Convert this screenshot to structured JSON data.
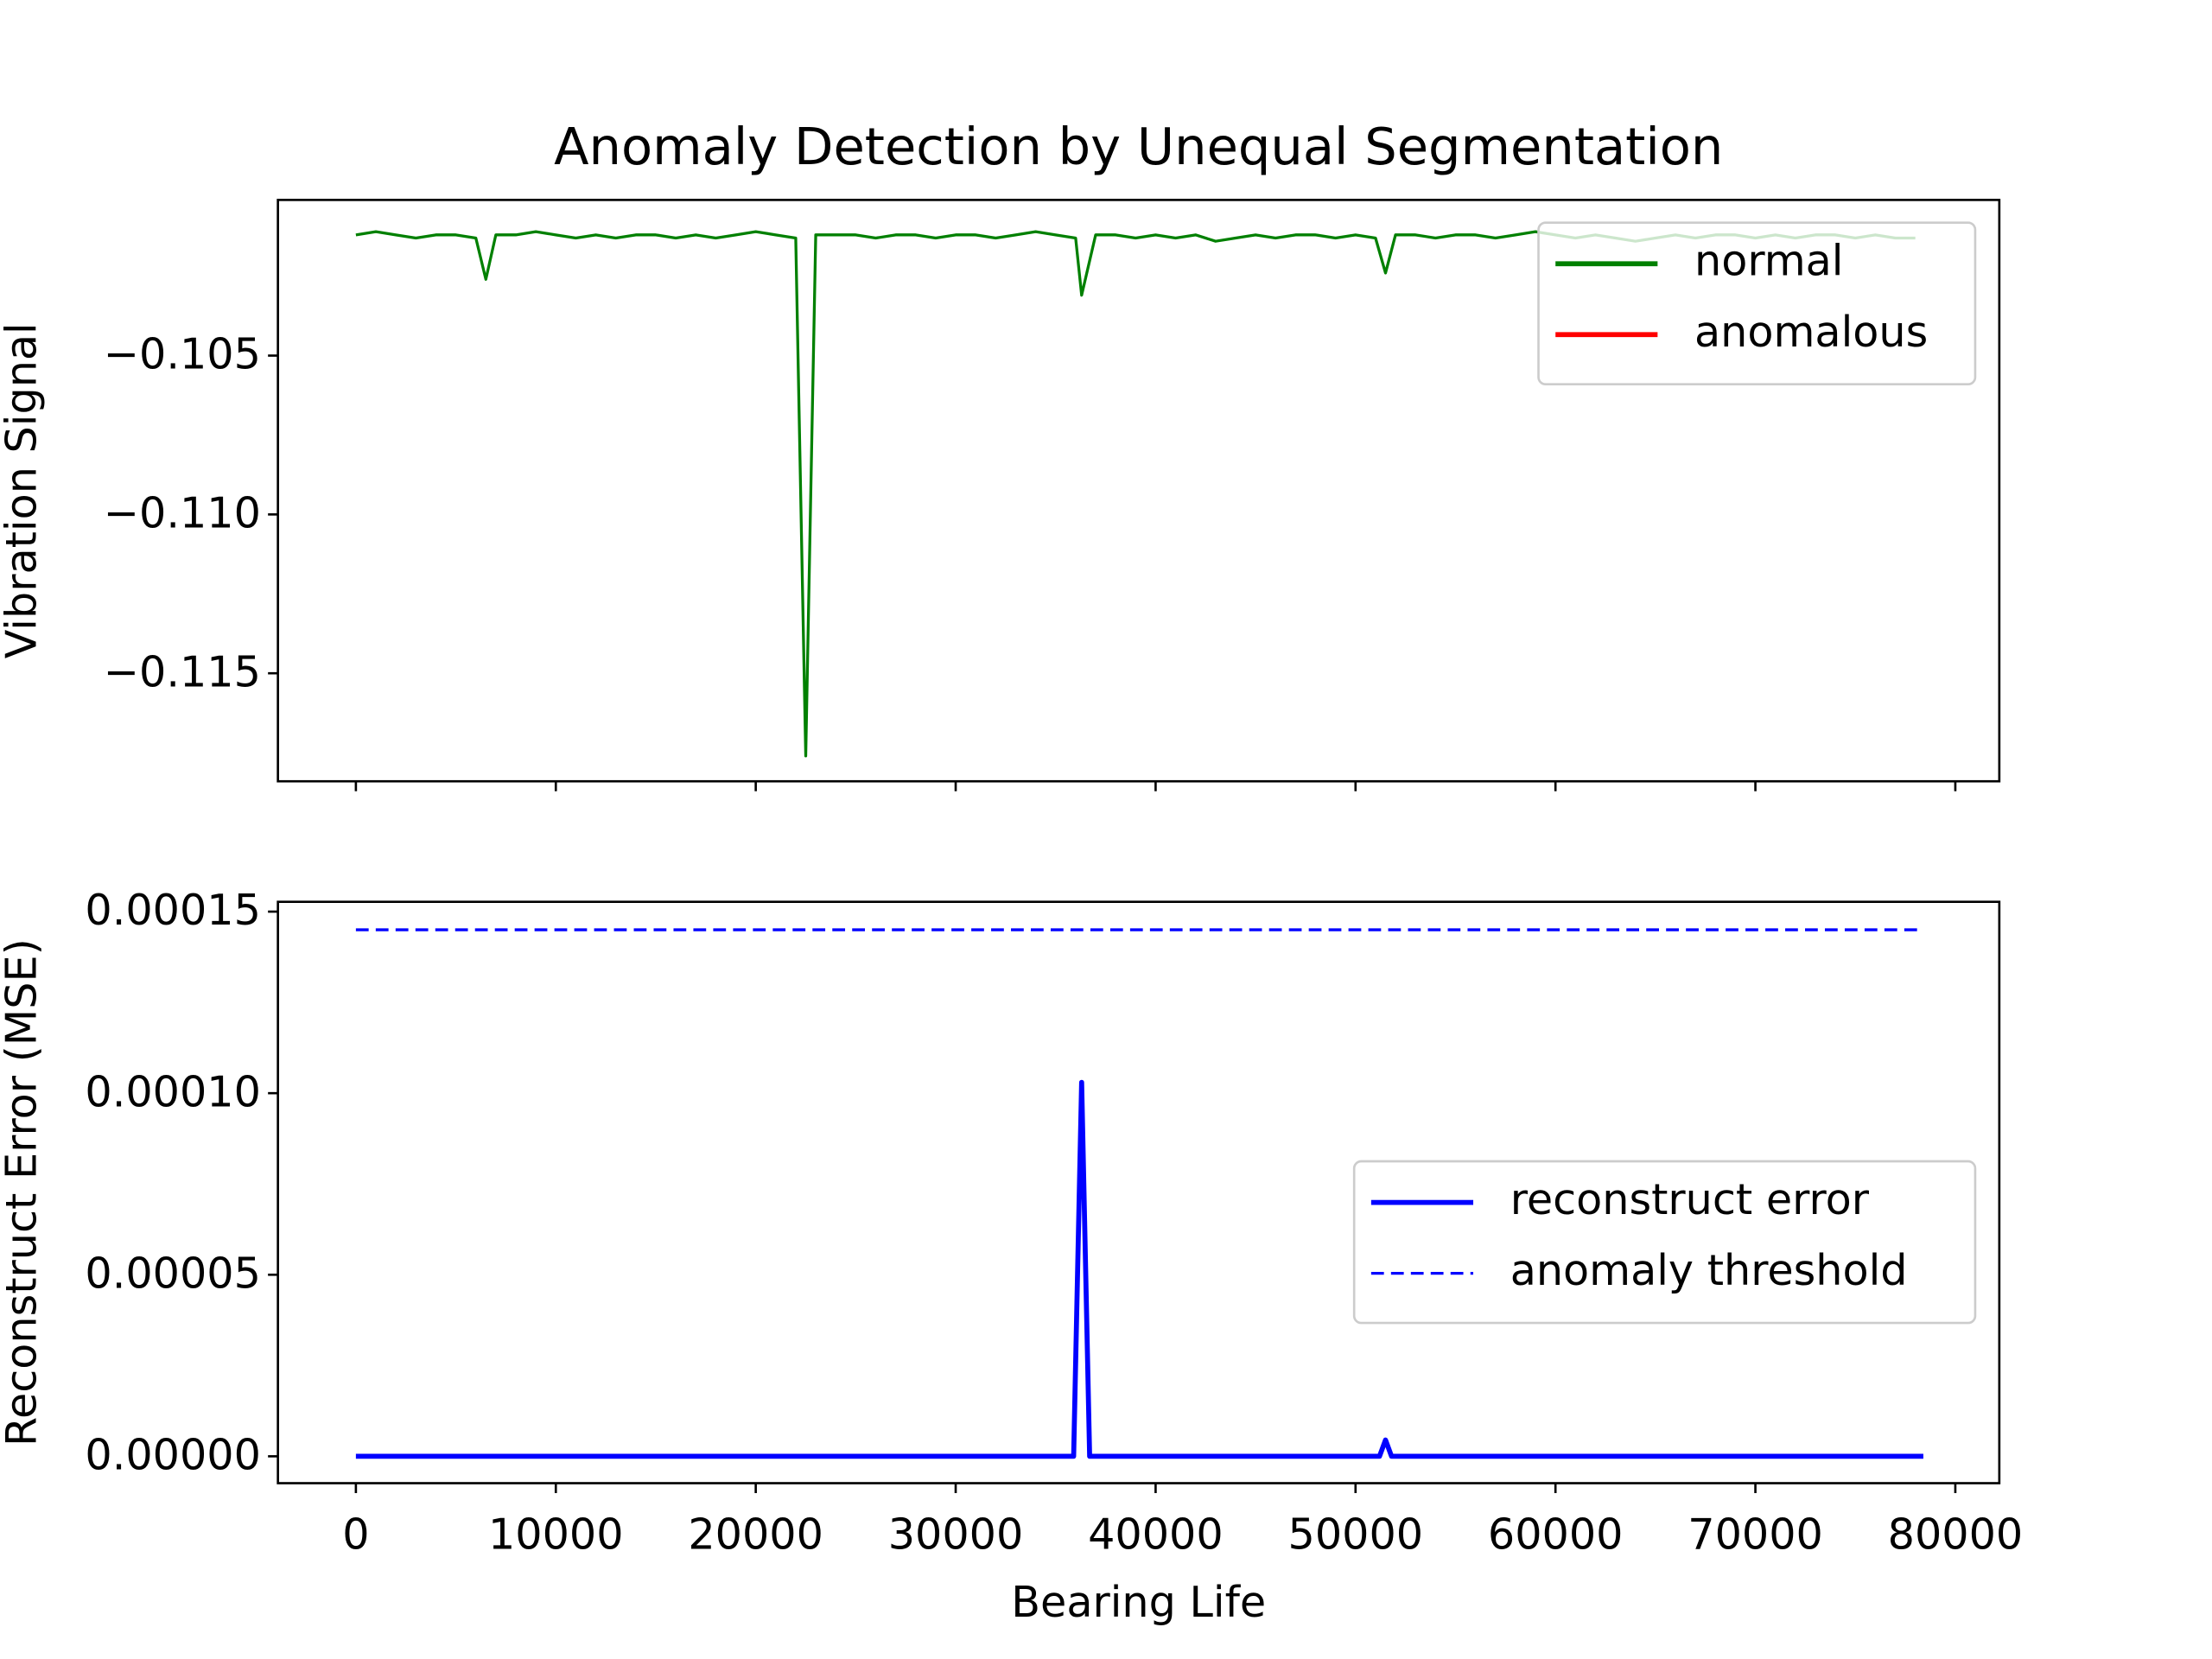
{
  "chart_data": [
    {
      "type": "line",
      "title": "Anomaly Detection by Unequal Segmentation",
      "ylabel": "Vibration Signal",
      "x": [
        0,
        1000,
        2000,
        3000,
        4000,
        5000,
        6000,
        6500,
        7000,
        8000,
        9000,
        10000,
        11000,
        12000,
        13000,
        14000,
        15000,
        16000,
        17000,
        18000,
        19000,
        20000,
        21000,
        22000,
        22500,
        23000,
        24000,
        25000,
        26000,
        27000,
        28000,
        29000,
        30000,
        31000,
        32000,
        33000,
        34000,
        35000,
        36000,
        36300,
        37000,
        38000,
        39000,
        40000,
        41000,
        42000,
        43000,
        44000,
        45000,
        46000,
        47000,
        48000,
        49000,
        50000,
        51000,
        51500,
        52000,
        53000,
        54000,
        55000,
        56000,
        57000,
        58000,
        59000,
        60000,
        61000,
        62000,
        63000,
        64000,
        65000,
        66000,
        67000,
        68000,
        69000,
        70000,
        71000,
        72000,
        73000,
        74000,
        75000,
        76000,
        77000,
        78000
      ],
      "series": [
        {
          "name": "normal",
          "color": "#008000",
          "dash": false,
          "values": [
            -0.1012,
            -0.1011,
            -0.1012,
            -0.1013,
            -0.1012,
            -0.1012,
            -0.1013,
            -0.1026,
            -0.1012,
            -0.1012,
            -0.1011,
            -0.1012,
            -0.1013,
            -0.1012,
            -0.1013,
            -0.1012,
            -0.1012,
            -0.1013,
            -0.1012,
            -0.1013,
            -0.1012,
            -0.1011,
            -0.1012,
            -0.1013,
            -0.1176,
            -0.1012,
            -0.1012,
            -0.1012,
            -0.1013,
            -0.1012,
            -0.1012,
            -0.1013,
            -0.1012,
            -0.1012,
            -0.1013,
            -0.1012,
            -0.1011,
            -0.1012,
            -0.1013,
            -0.1031,
            -0.1012,
            -0.1012,
            -0.1013,
            -0.1012,
            -0.1013,
            -0.1012,
            -0.1014,
            -0.1013,
            -0.1012,
            -0.1013,
            -0.1012,
            -0.1012,
            -0.1013,
            -0.1012,
            -0.1013,
            -0.1024,
            -0.1012,
            -0.1012,
            -0.1013,
            -0.1012,
            -0.1012,
            -0.1013,
            -0.1012,
            -0.1011,
            -0.1012,
            -0.1013,
            -0.1012,
            -0.1013,
            -0.1014,
            -0.1013,
            -0.1012,
            -0.1013,
            -0.1012,
            -0.1012,
            -0.1013,
            -0.1012,
            -0.1013,
            -0.1012,
            -0.1012,
            -0.1013,
            -0.1012,
            -0.1013,
            -0.1013
          ]
        },
        {
          "name": "anomalous",
          "color": "#ff0000",
          "dash": false,
          "values": [
            null,
            null,
            null,
            null,
            null,
            null,
            null,
            null,
            null,
            null,
            null,
            null,
            null,
            null,
            null,
            null,
            null,
            null,
            null,
            null,
            null,
            null,
            null,
            null,
            null,
            null,
            null,
            null,
            null,
            null,
            null,
            null,
            null,
            null,
            null,
            null,
            null,
            null,
            null,
            null,
            null,
            null,
            null,
            null,
            null,
            null,
            null,
            null,
            null,
            null,
            null,
            null,
            null,
            null,
            null,
            null,
            null,
            null,
            null,
            null,
            null,
            null,
            null,
            null,
            null,
            null,
            null,
            null,
            null,
            null,
            null,
            null,
            null,
            null,
            null,
            null,
            null,
            null,
            null,
            null,
            null,
            null,
            null
          ]
        }
      ],
      "xlim": [
        -3900,
        82200
      ],
      "xticks": [
        0,
        10000,
        20000,
        30000,
        40000,
        50000,
        60000,
        70000,
        80000
      ],
      "ylim": [
        -0.1184,
        -0.1001
      ],
      "yticks": [
        {
          "value": -0.105,
          "label": "−0.105"
        },
        {
          "value": -0.11,
          "label": "−0.110"
        },
        {
          "value": -0.115,
          "label": "−0.115"
        }
      ],
      "legend": "upper right",
      "grid": false
    },
    {
      "type": "line",
      "ylabel": "Reconstruct Error (MSE)",
      "xlabel": "Bearing Life",
      "x": [
        0,
        35900,
        36300,
        36700,
        51200,
        51500,
        51800,
        78400
      ],
      "series": [
        {
          "name": "reconstruct error",
          "color": "#0000ff",
          "dash": false,
          "values": [
            0,
            0,
            0.000103,
            0,
            0,
            4.5e-06,
            0,
            0
          ]
        },
        {
          "name": "anomaly threshold",
          "color": "#0000ff",
          "dash": true,
          "values": [
            0.000145,
            0.000145,
            0.000145,
            0.000145,
            0.000145,
            0.000145,
            0.000145,
            0.000145
          ]
        }
      ],
      "xlim": [
        -3900,
        82200
      ],
      "xticks": [
        0,
        10000,
        20000,
        30000,
        40000,
        50000,
        60000,
        70000,
        80000
      ],
      "ylim": [
        -7.4e-06,
        0.0001527
      ],
      "yticks": [
        {
          "value": 0,
          "label": "0.00000"
        },
        {
          "value": 5e-05,
          "label": "0.00005"
        },
        {
          "value": 0.0001,
          "label": "0.00010"
        },
        {
          "value": 0.00015,
          "label": "0.00015"
        }
      ],
      "legend": "center right",
      "grid": false
    }
  ]
}
